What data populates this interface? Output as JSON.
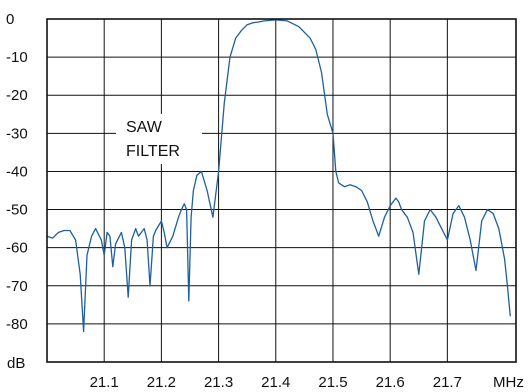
{
  "chart_data": {
    "type": "line",
    "xlabel": "MHz",
    "ylabel": "dB",
    "xlim": [
      21.0,
      21.82
    ],
    "ylim": [
      -90,
      0
    ],
    "x_ticks": [
      "21.1",
      "21.2",
      "21.3",
      "21.4",
      "21.5",
      "21.6",
      "21.7"
    ],
    "y_ticks": [
      "0",
      "-10",
      "-20",
      "-30",
      "-40",
      "-50",
      "-60",
      "-70",
      "-80"
    ],
    "grid": true,
    "line_color": "#1f5fa0",
    "annotation": {
      "line1": "SAW",
      "line2": "FILTER"
    },
    "series": [
      {
        "x": [
          21.0,
          21.01,
          21.02,
          21.03,
          21.04,
          21.05,
          21.058,
          21.064,
          21.07,
          21.078,
          21.085,
          21.095,
          21.1,
          21.105,
          21.11,
          21.115,
          21.12,
          21.13,
          21.136,
          21.142,
          21.148,
          21.155,
          21.16,
          21.17,
          21.175,
          21.18,
          21.186,
          21.19,
          21.2,
          21.205,
          21.21,
          21.22,
          21.23,
          21.235,
          21.24,
          21.244,
          21.248,
          21.252,
          21.256,
          21.262,
          21.27,
          21.28,
          21.29,
          21.3,
          21.31,
          21.32,
          21.33,
          21.34,
          21.35,
          21.36,
          21.37,
          21.38,
          21.4,
          21.42,
          21.44,
          21.46,
          21.47,
          21.48,
          21.49,
          21.5,
          21.505,
          21.51,
          21.52,
          21.53,
          21.54,
          21.55,
          21.56,
          21.57,
          21.58,
          21.59,
          21.6,
          21.61,
          21.615,
          21.62,
          21.63,
          21.64,
          21.65,
          21.66,
          21.67,
          21.68,
          21.69,
          21.7,
          21.71,
          21.72,
          21.73,
          21.74,
          21.75,
          21.76,
          21.77,
          21.78,
          21.79,
          21.8,
          21.805,
          21.81
        ],
        "y": [
          -57,
          -57.5,
          -56,
          -55.5,
          -55.5,
          -58,
          -67,
          -82,
          -62,
          -57,
          -55,
          -58,
          -62,
          -56,
          -57,
          -65,
          -59,
          -56,
          -60,
          -73,
          -58,
          -55,
          -57,
          -55,
          -58,
          -70,
          -57,
          -55.5,
          -53,
          -56,
          -60,
          -57,
          -52,
          -50,
          -48.5,
          -50,
          -74,
          -52,
          -45,
          -41,
          -40,
          -45,
          -52,
          -40,
          -22,
          -10,
          -5,
          -3,
          -1.5,
          -1,
          -0.8,
          -0.5,
          -0.2,
          -0.5,
          -2,
          -5,
          -8,
          -14,
          -25,
          -30,
          -40,
          -43,
          -44,
          -43.5,
          -44,
          -45,
          -48,
          -53,
          -57,
          -52,
          -49,
          -47,
          -48,
          -50,
          -52,
          -56,
          -67,
          -53,
          -50,
          -52,
          -55,
          -58,
          -51,
          -49,
          -52,
          -58,
          -66,
          -53,
          -50,
          -51,
          -55,
          -63,
          -70,
          -78
        ]
      }
    ]
  }
}
